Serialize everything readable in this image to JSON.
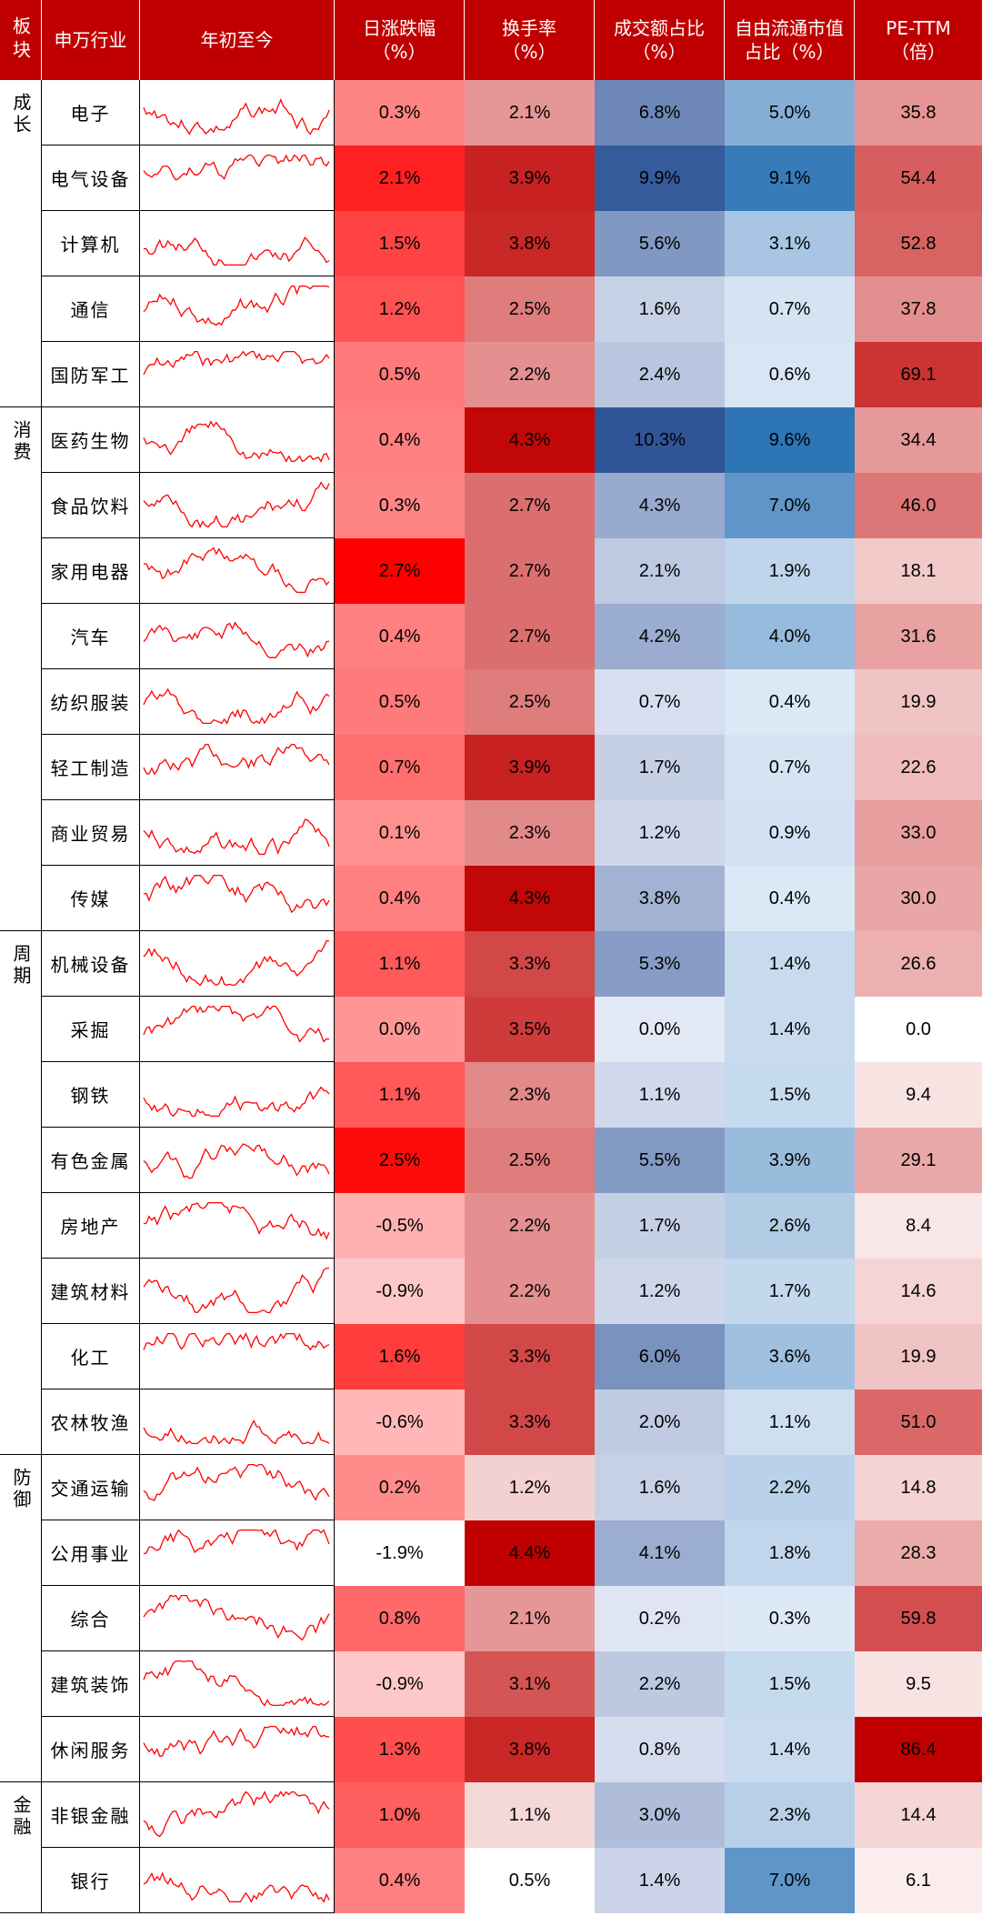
{
  "headers": {
    "sector": "板块",
    "industry": "申万行业",
    "ytd": "年初至今",
    "daily_change_l1": "日涨跌幅",
    "daily_change_l2": "（%）",
    "turnover_l1": "换手率",
    "turnover_l2": "（%）",
    "volume_share_l1": "成交额占比",
    "volume_share_l2": "（%）",
    "float_cap_l1": "自由流通市值",
    "float_cap_l2": "占比（%）",
    "pe_l1": "PE-TTM",
    "pe_l2": "（倍）"
  },
  "colors": {
    "header_bg": "#c00000",
    "sparkline": "#ff0000",
    "red_max": "#ff0000",
    "red_dark": "#c00000",
    "blue_max": "#2f5597",
    "blue_strong": "#2e75b6"
  },
  "chart_data": {
    "type": "table",
    "groups": [
      {
        "name": "成长",
        "rows": [
          0,
          4
        ]
      },
      {
        "name": "消费",
        "rows": [
          5,
          12
        ]
      },
      {
        "name": "周期",
        "rows": [
          13,
          20
        ]
      },
      {
        "name": "防御",
        "rows": [
          21,
          25
        ]
      },
      {
        "name": "金融",
        "rows": [
          26,
          27
        ]
      }
    ],
    "rows": [
      {
        "industry": "电子",
        "daily_change": "0.3%",
        "turnover": "2.1%",
        "volume_share": "6.8%",
        "float_cap_share": "5.0%",
        "pe_ttm": "35.8"
      },
      {
        "industry": "电气设备",
        "daily_change": "2.1%",
        "turnover": "3.9%",
        "volume_share": "9.9%",
        "float_cap_share": "9.1%",
        "pe_ttm": "54.4"
      },
      {
        "industry": "计算机",
        "daily_change": "1.5%",
        "turnover": "3.8%",
        "volume_share": "5.6%",
        "float_cap_share": "3.1%",
        "pe_ttm": "52.8"
      },
      {
        "industry": "通信",
        "daily_change": "1.2%",
        "turnover": "2.5%",
        "volume_share": "1.6%",
        "float_cap_share": "0.7%",
        "pe_ttm": "37.8"
      },
      {
        "industry": "国防军工",
        "daily_change": "0.5%",
        "turnover": "2.2%",
        "volume_share": "2.4%",
        "float_cap_share": "0.6%",
        "pe_ttm": "69.1"
      },
      {
        "industry": "医药生物",
        "daily_change": "0.4%",
        "turnover": "4.3%",
        "volume_share": "10.3%",
        "float_cap_share": "9.6%",
        "pe_ttm": "34.4"
      },
      {
        "industry": "食品饮料",
        "daily_change": "0.3%",
        "turnover": "2.7%",
        "volume_share": "4.3%",
        "float_cap_share": "7.0%",
        "pe_ttm": "46.0"
      },
      {
        "industry": "家用电器",
        "daily_change": "2.7%",
        "turnover": "2.7%",
        "volume_share": "2.1%",
        "float_cap_share": "1.9%",
        "pe_ttm": "18.1"
      },
      {
        "industry": "汽车",
        "daily_change": "0.4%",
        "turnover": "2.7%",
        "volume_share": "4.2%",
        "float_cap_share": "4.0%",
        "pe_ttm": "31.6"
      },
      {
        "industry": "纺织服装",
        "daily_change": "0.5%",
        "turnover": "2.5%",
        "volume_share": "0.7%",
        "float_cap_share": "0.4%",
        "pe_ttm": "19.9"
      },
      {
        "industry": "轻工制造",
        "daily_change": "0.7%",
        "turnover": "3.9%",
        "volume_share": "1.7%",
        "float_cap_share": "0.7%",
        "pe_ttm": "22.6"
      },
      {
        "industry": "商业贸易",
        "daily_change": "0.1%",
        "turnover": "2.3%",
        "volume_share": "1.2%",
        "float_cap_share": "0.9%",
        "pe_ttm": "33.0"
      },
      {
        "industry": "传媒",
        "daily_change": "0.4%",
        "turnover": "4.3%",
        "volume_share": "3.8%",
        "float_cap_share": "0.4%",
        "pe_ttm": "30.0"
      },
      {
        "industry": "机械设备",
        "daily_change": "1.1%",
        "turnover": "3.3%",
        "volume_share": "5.3%",
        "float_cap_share": "1.4%",
        "pe_ttm": "26.6"
      },
      {
        "industry": "采掘",
        "daily_change": "0.0%",
        "turnover": "3.5%",
        "volume_share": "0.0%",
        "float_cap_share": "1.4%",
        "pe_ttm": "0.0"
      },
      {
        "industry": "钢铁",
        "daily_change": "1.1%",
        "turnover": "2.3%",
        "volume_share": "1.1%",
        "float_cap_share": "1.5%",
        "pe_ttm": "9.4"
      },
      {
        "industry": "有色金属",
        "daily_change": "2.5%",
        "turnover": "2.5%",
        "volume_share": "5.5%",
        "float_cap_share": "3.9%",
        "pe_ttm": "29.1"
      },
      {
        "industry": "房地产",
        "daily_change": "-0.5%",
        "turnover": "2.2%",
        "volume_share": "1.7%",
        "float_cap_share": "2.6%",
        "pe_ttm": "8.4"
      },
      {
        "industry": "建筑材料",
        "daily_change": "-0.9%",
        "turnover": "2.2%",
        "volume_share": "1.2%",
        "float_cap_share": "1.7%",
        "pe_ttm": "14.6"
      },
      {
        "industry": "化工",
        "daily_change": "1.6%",
        "turnover": "3.3%",
        "volume_share": "6.0%",
        "float_cap_share": "3.6%",
        "pe_ttm": "19.9"
      },
      {
        "industry": "农林牧渔",
        "daily_change": "-0.6%",
        "turnover": "3.3%",
        "volume_share": "2.0%",
        "float_cap_share": "1.1%",
        "pe_ttm": "51.0"
      },
      {
        "industry": "交通运输",
        "daily_change": "0.2%",
        "turnover": "1.2%",
        "volume_share": "1.6%",
        "float_cap_share": "2.2%",
        "pe_ttm": "14.8"
      },
      {
        "industry": "公用事业",
        "daily_change": "-1.9%",
        "turnover": "4.4%",
        "volume_share": "4.1%",
        "float_cap_share": "1.8%",
        "pe_ttm": "28.3"
      },
      {
        "industry": "综合",
        "daily_change": "0.8%",
        "turnover": "2.1%",
        "volume_share": "0.2%",
        "float_cap_share": "0.3%",
        "pe_ttm": "59.8"
      },
      {
        "industry": "建筑装饰",
        "daily_change": "-0.9%",
        "turnover": "3.1%",
        "volume_share": "2.2%",
        "float_cap_share": "1.5%",
        "pe_ttm": "9.5"
      },
      {
        "industry": "休闲服务",
        "daily_change": "1.3%",
        "turnover": "3.8%",
        "volume_share": "0.8%",
        "float_cap_share": "1.4%",
        "pe_ttm": "86.4"
      },
      {
        "industry": "非银金融",
        "daily_change": "1.0%",
        "turnover": "1.1%",
        "volume_share": "3.0%",
        "float_cap_share": "2.3%",
        "pe_ttm": "14.4"
      },
      {
        "industry": "银行",
        "daily_change": "0.4%",
        "turnover": "0.5%",
        "volume_share": "1.4%",
        "float_cap_share": "7.0%",
        "pe_ttm": "6.1"
      }
    ]
  }
}
